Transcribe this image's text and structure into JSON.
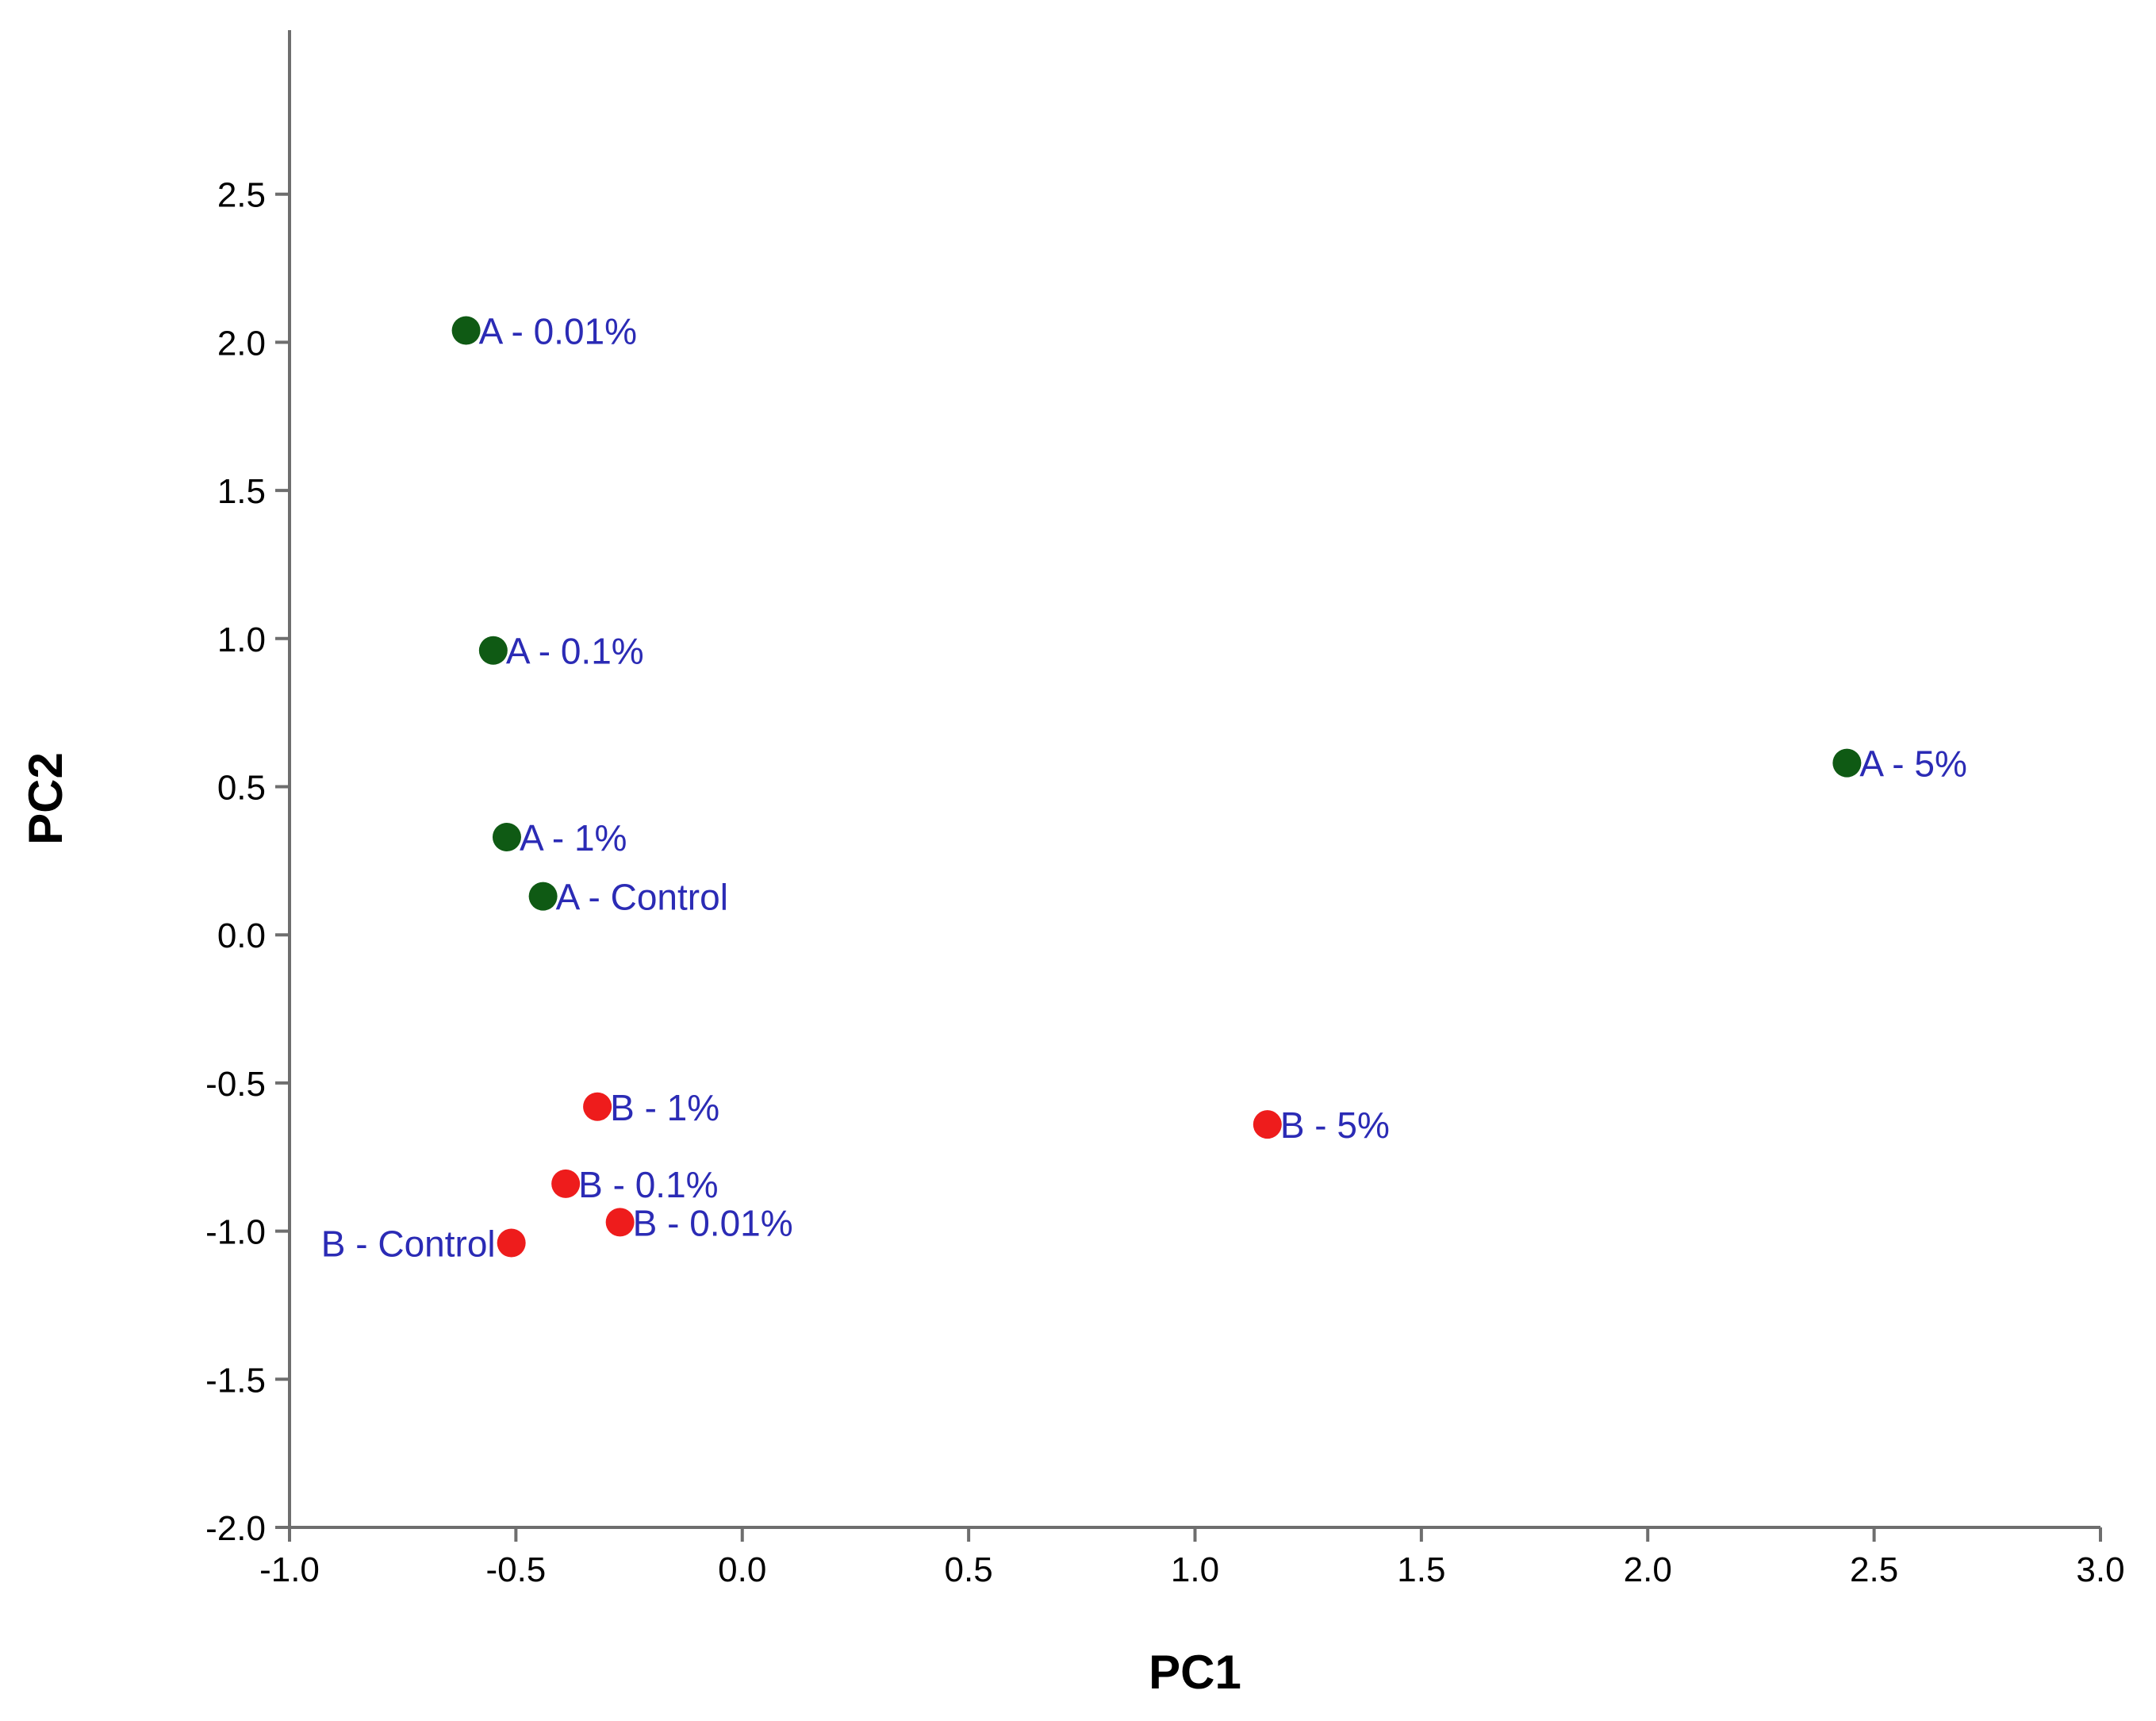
{
  "chart_data": {
    "type": "scatter",
    "title": "",
    "xlabel": "PC1",
    "ylabel": "PC2",
    "xlim": [
      -1.0,
      3.0
    ],
    "ylim": [
      -2.0,
      3.0
    ],
    "x_ticks": [
      "-1.0",
      "-0.5",
      "0.0",
      "0.5",
      "1.0",
      "1.5",
      "2.0",
      "2.5",
      "3.0"
    ],
    "y_ticks": [
      "-2.0",
      "-1.5",
      "-1.0",
      "-0.5",
      "0.0",
      "0.5",
      "1.0",
      "1.5",
      "2.0",
      "2.5"
    ],
    "grid": false,
    "series": [
      {
        "name": "A",
        "color": "#0f5a14",
        "points": [
          {
            "label": "A - 0.01%",
            "x": -0.61,
            "y": 2.04
          },
          {
            "label": "A - 0.1%",
            "x": -0.55,
            "y": 0.96
          },
          {
            "label": "A - 1%",
            "x": -0.52,
            "y": 0.33
          },
          {
            "label": "A - Control",
            "x": -0.44,
            "y": 0.13
          },
          {
            "label": "A - 5%",
            "x": 2.44,
            "y": 0.58
          }
        ]
      },
      {
        "name": "B",
        "color": "#ee1c1c",
        "points": [
          {
            "label": "B - 1%",
            "x": -0.32,
            "y": -0.58
          },
          {
            "label": "B - 5%",
            "x": 1.16,
            "y": -0.64
          },
          {
            "label": "B - 0.1%",
            "x": -0.39,
            "y": -0.84
          },
          {
            "label": "B - 0.01%",
            "x": -0.27,
            "y": -0.97
          },
          {
            "label": "B - Control",
            "x": -0.51,
            "y": -1.04
          }
        ]
      }
    ],
    "label_color": "#2b2bb5"
  }
}
